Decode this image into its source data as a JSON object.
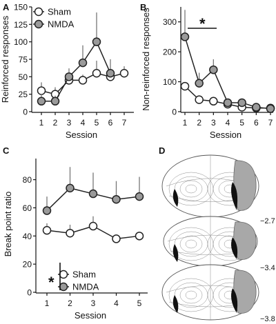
{
  "colors": {
    "sham_fill": "#ffffff",
    "nmda_fill": "#9a9a9a",
    "marker_stroke": "#222222",
    "error_bar": "#777777",
    "lesion_fill": "#a8a8a8",
    "lesion_core": "#111111"
  },
  "panels": {
    "a_label": "A",
    "b_label": "B",
    "c_label": "C",
    "d_label": "D",
    "significance_b": "*",
    "significance_c": "*",
    "atlas_levels": [
      "−2.7",
      "−3.4",
      "−3.8"
    ]
  },
  "chart_data": [
    {
      "type": "line",
      "panel": "A",
      "xlabel": "Session",
      "ylabel": "Reinforced responses",
      "x": [
        1,
        2,
        3,
        4,
        5,
        6,
        7
      ],
      "xticks": [
        "1",
        "2",
        "3",
        "4",
        "5",
        "6",
        "7"
      ],
      "yticks": [
        "0",
        "25",
        "50",
        "75",
        "100",
        "125",
        "150"
      ],
      "ylim": [
        0,
        150
      ],
      "legend": {
        "placement": "top-left",
        "entries": [
          "Sham",
          "NMDA"
        ]
      },
      "series": [
        {
          "name": "Sham",
          "values": [
            30,
            25,
            45,
            45,
            55,
            50,
            55
          ],
          "err": [
            12,
            10,
            8,
            8,
            18,
            10,
            10
          ]
        },
        {
          "name": "NMDA",
          "values": [
            15,
            15,
            50,
            70,
            100,
            55,
            null
          ],
          "err": [
            10,
            8,
            12,
            25,
            42,
            20,
            null
          ]
        }
      ]
    },
    {
      "type": "line",
      "panel": "B",
      "xlabel": "Session",
      "ylabel": "Non-reinforced responses",
      "x": [
        1,
        2,
        3,
        4,
        5,
        6,
        7
      ],
      "xticks": [
        "1",
        "2",
        "3",
        "4",
        "5",
        "6",
        "7"
      ],
      "yticks": [
        "0",
        "100",
        "200",
        "300"
      ],
      "ylim": [
        0,
        350
      ],
      "series": [
        {
          "name": "Sham",
          "values": [
            85,
            40,
            35,
            25,
            15,
            12,
            12
          ],
          "err": [
            0,
            0,
            0,
            0,
            0,
            0,
            0
          ]
        },
        {
          "name": "NMDA",
          "values": [
            250,
            95,
            140,
            30,
            30,
            15,
            10
          ],
          "err": [
            90,
            35,
            35,
            10,
            10,
            5,
            5
          ]
        }
      ]
    },
    {
      "type": "line",
      "panel": "C",
      "xlabel": "Session",
      "ylabel": "Break point ratio",
      "x": [
        1,
        2,
        3,
        4,
        5
      ],
      "xticks": [
        "1",
        "2",
        "3",
        "4",
        "5"
      ],
      "yticks": [
        "0",
        "20",
        "40",
        "60",
        "80"
      ],
      "ylim": [
        0,
        95
      ],
      "legend": {
        "placement": "bottom-right",
        "entries": [
          "Sham",
          "NMDA"
        ]
      },
      "series": [
        {
          "name": "Sham",
          "values": [
            44,
            42,
            47,
            38,
            40
          ],
          "err": [
            5,
            6,
            7,
            0,
            0
          ]
        },
        {
          "name": "NMDA",
          "values": [
            58,
            74,
            70,
            66,
            68
          ],
          "err": [
            10,
            15,
            15,
            13,
            14
          ]
        }
      ]
    }
  ]
}
